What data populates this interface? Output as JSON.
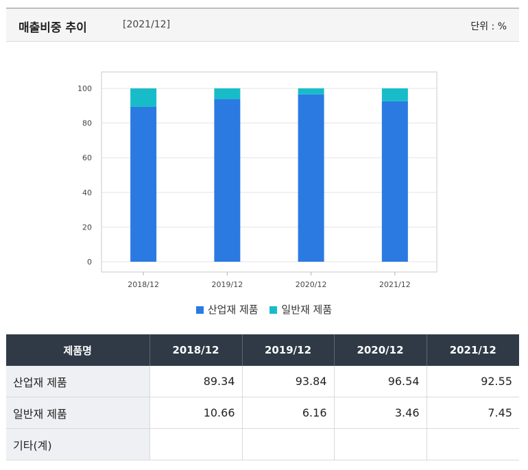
{
  "header": {
    "title": "매출비중 추이",
    "period": "[2021/12]",
    "unit": "단위 : %"
  },
  "chart_data": {
    "type": "bar",
    "stacked": true,
    "categories": [
      "2018/12",
      "2019/12",
      "2020/12",
      "2021/12"
    ],
    "series": [
      {
        "name": "산업재 제품",
        "values": [
          89.34,
          93.84,
          96.54,
          92.55
        ],
        "color": "#2a7ae2"
      },
      {
        "name": "일반재 제품",
        "values": [
          10.66,
          6.16,
          3.46,
          7.45
        ],
        "color": "#18bcc9"
      }
    ],
    "ylim": [
      0,
      100
    ],
    "yticks": [
      0,
      20,
      40,
      60,
      80,
      100
    ],
    "grid": true,
    "legend": "bottom"
  },
  "table": {
    "headers": [
      "제품명",
      "2018/12",
      "2019/12",
      "2020/12",
      "2021/12"
    ],
    "rows": [
      {
        "name": "산업재 제품",
        "values": [
          "89.34",
          "93.84",
          "96.54",
          "92.55"
        ]
      },
      {
        "name": "일반재 제품",
        "values": [
          "10.66",
          "6.16",
          "3.46",
          "7.45"
        ]
      },
      {
        "name": "기타(계)",
        "values": [
          "",
          "",
          "",
          ""
        ]
      }
    ]
  }
}
